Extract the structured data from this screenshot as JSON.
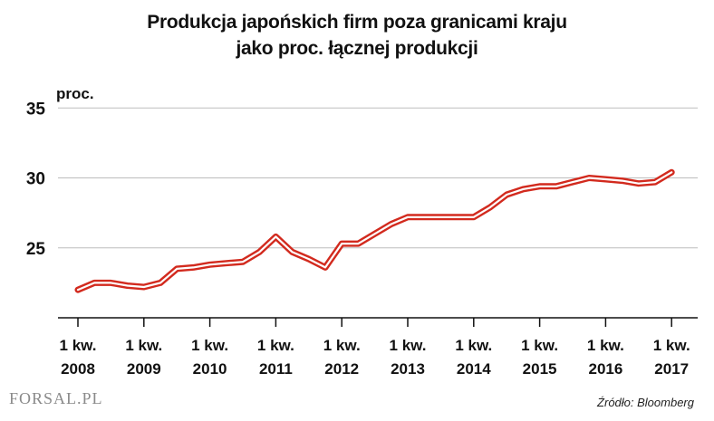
{
  "title_line1": "Produkcja japońskich firm poza granicami kraju",
  "title_line2": "jako proc. łącznej produkcji",
  "unit_label": "proc.",
  "logo_text": "FORSAL.PL",
  "source": "Źródło: Bloomberg",
  "colors": {
    "line": "#d22a1e",
    "axis": "#111111",
    "grid": "#bdbdbd"
  },
  "chart_data": {
    "type": "line",
    "title": "Produkcja japońskich firm poza granicami kraju jako proc. łącznej produkcji",
    "ylabel": "proc.",
    "xlabel": "",
    "ylim": [
      20,
      35
    ],
    "yticks": [
      25,
      30,
      35
    ],
    "grid": true,
    "x_tick_labels": [
      [
        "1 kw.",
        "2008"
      ],
      [
        "1 kw.",
        "2009"
      ],
      [
        "1 kw.",
        "2010"
      ],
      [
        "1 kw.",
        "2011"
      ],
      [
        "1 kw.",
        "2012"
      ],
      [
        "1 kw.",
        "2013"
      ],
      [
        "1 kw.",
        "2014"
      ],
      [
        "1 kw.",
        "2015"
      ],
      [
        "1 kw.",
        "2016"
      ],
      [
        "1 kw.",
        "2017"
      ]
    ],
    "x": [
      "1Q2008",
      "2Q2008",
      "3Q2008",
      "4Q2008",
      "1Q2009",
      "2Q2009",
      "3Q2009",
      "4Q2009",
      "1Q2010",
      "2Q2010",
      "3Q2010",
      "4Q2010",
      "1Q2011",
      "2Q2011",
      "3Q2011",
      "4Q2011",
      "1Q2012",
      "2Q2012",
      "3Q2012",
      "4Q2012",
      "1Q2013",
      "2Q2013",
      "3Q2013",
      "4Q2013",
      "1Q2014",
      "2Q2014",
      "3Q2014",
      "4Q2014",
      "1Q2015",
      "2Q2015",
      "3Q2015",
      "4Q2015",
      "1Q2016",
      "2Q2016",
      "3Q2016",
      "4Q2016",
      "1Q2017"
    ],
    "values": [
      22.0,
      22.5,
      22.5,
      22.3,
      22.2,
      22.5,
      23.5,
      23.6,
      23.8,
      23.9,
      24.0,
      24.7,
      25.8,
      24.7,
      24.2,
      23.6,
      25.3,
      25.3,
      26.0,
      26.7,
      27.2,
      27.2,
      27.2,
      27.2,
      27.2,
      27.9,
      28.8,
      29.2,
      29.4,
      29.4,
      29.7,
      30.0,
      29.9,
      29.8,
      29.6,
      29.7,
      30.4
    ]
  }
}
